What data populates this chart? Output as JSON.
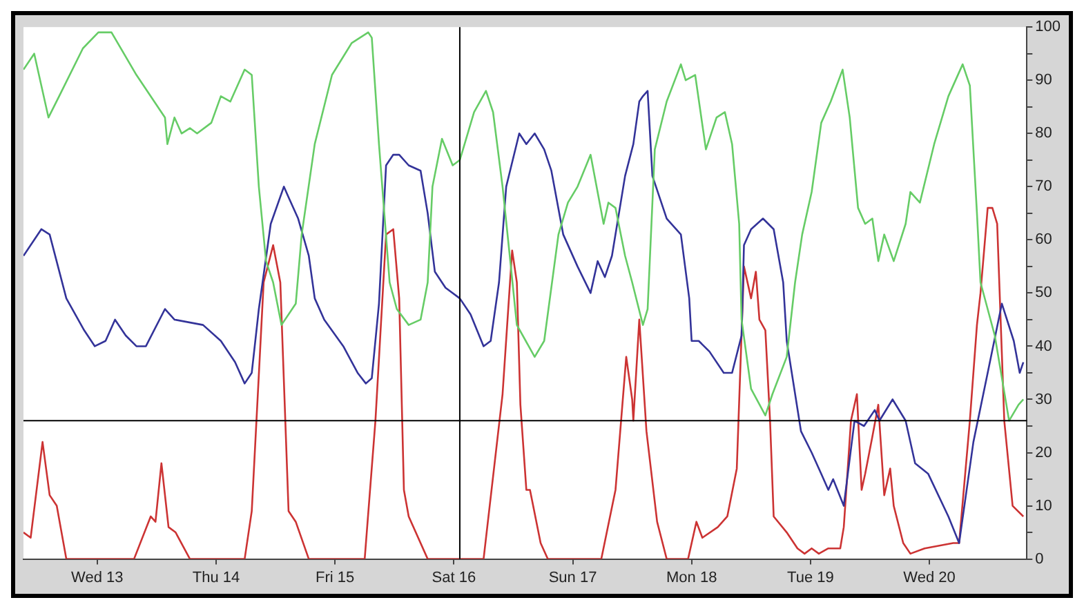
{
  "chart_data": {
    "type": "line",
    "xlim": [
      "--03-12T09:07",
      "--03-20T19:41"
    ],
    "ylim": [
      0,
      100
    ],
    "xticks": [
      {
        "value": "--03-13",
        "label": "Wed 13"
      },
      {
        "value": "--03-14",
        "label": "Thu 14"
      },
      {
        "value": "--03-15",
        "label": "Fri 15"
      },
      {
        "value": "--03-16",
        "label": "Sat 16"
      },
      {
        "value": "--03-17",
        "label": "Sun 17"
      },
      {
        "value": "--03-18",
        "label": "Mon 18"
      },
      {
        "value": "--03-19",
        "label": "Tue 19"
      },
      {
        "value": "--03-20",
        "label": "Wed 20"
      }
    ],
    "yticks": [
      0,
      {
        "value": 5,
        "label": null
      },
      10,
      {
        "value": 15,
        "label": null
      },
      20,
      {
        "value": 25,
        "label": null
      },
      30,
      {
        "value": 35,
        "label": null
      },
      40,
      {
        "value": 45,
        "label": null
      },
      50,
      {
        "value": 55,
        "label": null
      },
      60,
      {
        "value": 65,
        "label": null
      },
      70,
      {
        "value": 75,
        "label": null
      },
      80,
      {
        "value": 85,
        "label": null
      },
      90,
      {
        "value": 95,
        "label": null
      },
      100
    ],
    "ref_lines": [
      {
        "axis": "x",
        "value": "--03-16T01:12",
        "color": "#000000"
      },
      {
        "axis": "y",
        "value": 26,
        "color": "#000000"
      }
    ],
    "series": [
      {
        "color": "#66cc66",
        "x": [
          "--03-12T09:07",
          "--03-12T11:17",
          "--03-12T14:10",
          "--03-12T16:19",
          "--03-12T21:07",
          "--03-13T00:14",
          "--03-13T02:53",
          "--03-13T07:55",
          "--03-13T13:41",
          "--03-13T14:10",
          "--03-13T15:36",
          "--03-13T17:02",
          "--03-13T18:43",
          "--03-13T20:10",
          "--03-13T23:02",
          "--03-14T00:58",
          "--03-14T02:53",
          "--03-14T05:46",
          "--03-14T07:12",
          "--03-14T08:38",
          "--03-14T10:05",
          "--03-14T11:31",
          "--03-14T13:12",
          "--03-14T16:05",
          "--03-14T17:17",
          "--03-14T19:55",
          "--03-14T23:24",
          "--03-15T03:22",
          "--03-15T06:43",
          "--03-15T07:26",
          "--03-15T08:53",
          "--03-15T11:02",
          "--03-15T12:29",
          "--03-15T14:53",
          "--03-15T17:17",
          "--03-15T18:43",
          "--03-15T19:41",
          "--03-15T21:36",
          "--03-15T23:46",
          "--03-16T01:12",
          "--03-16T02:10",
          "--03-16T04:05",
          "--03-16T06:29",
          "--03-16T07:55",
          "--03-16T09:50",
          "--03-16T11:17",
          "--03-16T12:43",
          "--03-16T16:19",
          "--03-16T18:14",
          "--03-16T21:07",
          "--03-16T23:02",
          "--03-17T00:58",
          "--03-17T03:36",
          "--03-17T06:14",
          "--03-17T07:12",
          "--03-17T08:38",
          "--03-17T10:34",
          "--03-17T12:00",
          "--03-17T14:10",
          "--03-17T15:07",
          "--03-17T16:34",
          "--03-17T18:58",
          "--03-17T21:50",
          "--03-17T22:48",
          "--03-18T00:43",
          "--03-18T02:53",
          "--03-18T05:02",
          "--03-18T06:43",
          "--03-18T08:10",
          "--03-18T09:36",
          "--03-18T10:05",
          "--03-18T12:00",
          "--03-18T14:53",
          "--03-18T16:19",
          "--03-18T19:12",
          "--03-18T20:53",
          "--03-18T22:19",
          "--03-19T00:14",
          "--03-19T02:10",
          "--03-19T04:05",
          "--03-19T06:29",
          "--03-19T07:55",
          "--03-19T09:36",
          "--03-19T11:02",
          "--03-19T12:29",
          "--03-19T13:41",
          "--03-19T14:53",
          "--03-19T16:48",
          "--03-19T19:12",
          "--03-19T20:10",
          "--03-19T22:05",
          "--03-20T00:58",
          "--03-20T03:50",
          "--03-20T06:43",
          "--03-20T08:10",
          "--03-20T09:36",
          "--03-20T10:19",
          "--03-20T13:12",
          "--03-20T16:05",
          "--03-20T18:00",
          "--03-20T18:58"
        ],
        "values": [
          92,
          95,
          83,
          87,
          96,
          99,
          99,
          91,
          83,
          78,
          83,
          80,
          81,
          80,
          82,
          87,
          86,
          92,
          91,
          70,
          56,
          52,
          44,
          48,
          61,
          78,
          91,
          97,
          99,
          98,
          78,
          52,
          47,
          44,
          45,
          52,
          70,
          79,
          74,
          75,
          78,
          84,
          88,
          84,
          70,
          57,
          44,
          38,
          41,
          61,
          67,
          70,
          76,
          63,
          67,
          66,
          57,
          52,
          44,
          47,
          77,
          86,
          93,
          90,
          91,
          77,
          83,
          84,
          78,
          63,
          45,
          32,
          27,
          31,
          38,
          52,
          61,
          69,
          82,
          86,
          92,
          83,
          66,
          63,
          64,
          56,
          61,
          56,
          63,
          69,
          67,
          78,
          87,
          93,
          89,
          65,
          52,
          42,
          26,
          29,
          30
        ]
      },
      {
        "color": "#333399",
        "x": [
          "--03-12T09:07",
          "--03-12T12:43",
          "--03-12T14:24",
          "--03-12T17:46",
          "--03-12T21:22",
          "--03-12T23:31",
          "--03-13T01:41",
          "--03-13T03:36",
          "--03-13T05:46",
          "--03-13T07:55",
          "--03-13T09:50",
          "--03-13T13:41",
          "--03-13T15:36",
          "--03-13T21:22",
          "--03-14T00:58",
          "--03-14T03:50",
          "--03-14T05:46",
          "--03-14T07:12",
          "--03-14T08:38",
          "--03-14T11:02",
          "--03-14T13:41",
          "--03-14T14:38",
          "--03-14T16:34",
          "--03-14T18:43",
          "--03-14T19:55",
          "--03-14T21:50",
          "--03-15T01:41",
          "--03-15T04:34",
          "--03-15T06:14",
          "--03-15T07:26",
          "--03-15T08:53",
          "--03-15T10:19",
          "--03-15T11:46",
          "--03-15T12:58",
          "--03-15T14:53",
          "--03-15T17:17",
          "--03-15T18:43",
          "--03-15T20:10",
          "--03-15T22:19",
          "--03-16T01:12",
          "--03-16T03:22",
          "--03-16T06:00",
          "--03-16T07:26",
          "--03-16T09:07",
          "--03-16T10:34",
          "--03-16T13:12",
          "--03-16T14:38",
          "--03-16T16:19",
          "--03-16T18:14",
          "--03-16T19:41",
          "--03-16T22:05",
          "--03-17T00:58",
          "--03-17T03:36",
          "--03-17T05:02",
          "--03-17T06:29",
          "--03-17T07:55",
          "--03-17T10:34",
          "--03-17T12:14",
          "--03-17T13:26",
          "--03-17T14:10",
          "--03-17T15:07",
          "--03-17T16:05",
          "--03-17T18:58",
          "--03-17T21:50",
          "--03-17T23:31",
          "--03-18T00:00",
          "--03-18T01:26",
          "--03-18T03:36",
          "--03-18T06:29",
          "--03-18T08:10",
          "--03-18T10:05",
          "--03-18T10:34",
          "--03-18T12:00",
          "--03-18T14:24",
          "--03-18T16:34",
          "--03-18T18:29",
          "--03-18T19:12",
          "--03-18T22:05",
          "--03-19T00:14",
          "--03-19T02:10",
          "--03-19T03:36",
          "--03-19T04:34",
          "--03-19T06:43",
          "--03-19T08:53",
          "--03-19T10:48",
          "--03-19T12:58",
          "--03-19T13:55",
          "--03-19T16:34",
          "--03-19T19:12",
          "--03-19T21:07",
          "--03-19T23:46",
          "--03-20T03:50",
          "--03-20T06:00",
          "--03-20T08:53",
          "--03-20T11:46",
          "--03-20T14:38",
          "--03-20T17:02",
          "--03-20T18:14",
          "--03-20T18:58"
        ],
        "values": [
          57,
          62,
          61,
          49,
          43,
          40,
          41,
          45,
          42,
          40,
          40,
          47,
          45,
          44,
          41,
          37,
          33,
          35,
          47,
          63,
          70,
          68,
          64,
          57,
          49,
          45,
          40,
          35,
          33,
          34,
          48,
          74,
          76,
          76,
          74,
          73,
          65,
          54,
          51,
          49,
          46,
          40,
          41,
          52,
          70,
          80,
          78,
          80,
          77,
          73,
          61,
          55,
          50,
          56,
          53,
          57,
          72,
          78,
          86,
          87,
          88,
          72,
          64,
          61,
          49,
          41,
          41,
          39,
          35,
          35,
          42,
          59,
          62,
          64,
          62,
          52,
          41,
          24,
          20,
          16,
          13,
          15,
          10,
          26,
          25,
          28,
          26,
          30,
          26,
          18,
          16,
          8,
          3,
          22,
          35,
          48,
          41,
          35,
          37
        ]
      },
      {
        "color": "#cc3333",
        "x": [
          "--03-12T09:07",
          "--03-12T10:34",
          "--03-12T12:58",
          "--03-12T14:24",
          "--03-12T15:50",
          "--03-12T17:46",
          "--03-13T07:26",
          "--03-13T10:48",
          "--03-13T11:46",
          "--03-13T12:58",
          "--03-13T14:24",
          "--03-13T15:50",
          "--03-13T18:43",
          "--03-14T05:46",
          "--03-14T07:12",
          "--03-14T09:36",
          "--03-14T11:31",
          "--03-14T12:58",
          "--03-14T14:38",
          "--03-14T16:05",
          "--03-14T18:43",
          "--03-15T06:00",
          "--03-15T08:10",
          "--03-15T10:19",
          "--03-15T11:46",
          "--03-15T12:58",
          "--03-15T13:55",
          "--03-15T14:53",
          "--03-15T18:43",
          "--03-16T06:00",
          "--03-16T09:50",
          "--03-16T11:46",
          "--03-16T12:43",
          "--03-16T13:26",
          "--03-16T14:38",
          "--03-16T15:22",
          "--03-16T17:31",
          "--03-16T18:58",
          "--03-17T05:46",
          "--03-17T08:38",
          "--03-17T10:48",
          "--03-17T12:00",
          "--03-17T12:14",
          "--03-17T13:26",
          "--03-17T14:53",
          "--03-17T17:02",
          "--03-17T18:58",
          "--03-17T23:17",
          "--03-18T00:58",
          "--03-18T02:10",
          "--03-18T05:17",
          "--03-18T07:12",
          "--03-18T09:07",
          "--03-18T10:34",
          "--03-18T12:00",
          "--03-18T12:58",
          "--03-18T13:41",
          "--03-18T14:53",
          "--03-18T15:50",
          "--03-18T16:34",
          "--03-18T19:12",
          "--03-18T21:22",
          "--03-18T22:48",
          "--03-19T00:14",
          "--03-19T01:41",
          "--03-19T03:36",
          "--03-19T06:00",
          "--03-19T06:43",
          "--03-19T08:10",
          "--03-19T09:22",
          "--03-19T10:19",
          "--03-19T11:02",
          "--03-19T12:29",
          "--03-19T13:41",
          "--03-19T14:53",
          "--03-19T16:05",
          "--03-19T16:48",
          "--03-19T18:43",
          "--03-19T20:10",
          "--03-19T23:02",
          "--03-20T04:48",
          "--03-20T06:00",
          "--03-20T08:10",
          "--03-20T09:36",
          "--03-20T10:19",
          "--03-20T11:46",
          "--03-20T12:43",
          "--03-20T13:41",
          "--03-20T15:07",
          "--03-20T16:48",
          "--03-20T18:58"
        ],
        "values": [
          5,
          4,
          22,
          12,
          10,
          0,
          0,
          8,
          7,
          18,
          6,
          5,
          0,
          0,
          9,
          52,
          59,
          52,
          9,
          7,
          0,
          0,
          26,
          61,
          62,
          49,
          13,
          8,
          0,
          0,
          31,
          58,
          52,
          29,
          13,
          13,
          3,
          0,
          0,
          13,
          38,
          30,
          26,
          45,
          24,
          7,
          0,
          0,
          7,
          4,
          6,
          8,
          17,
          55,
          49,
          54,
          45,
          43,
          26,
          8,
          5,
          2,
          1,
          2,
          1,
          2,
          2,
          6,
          26,
          31,
          13,
          16,
          23,
          29,
          12,
          17,
          10,
          3,
          1,
          2,
          3,
          3,
          26,
          44,
          50,
          66,
          66,
          63,
          26,
          10,
          8
        ]
      }
    ]
  }
}
